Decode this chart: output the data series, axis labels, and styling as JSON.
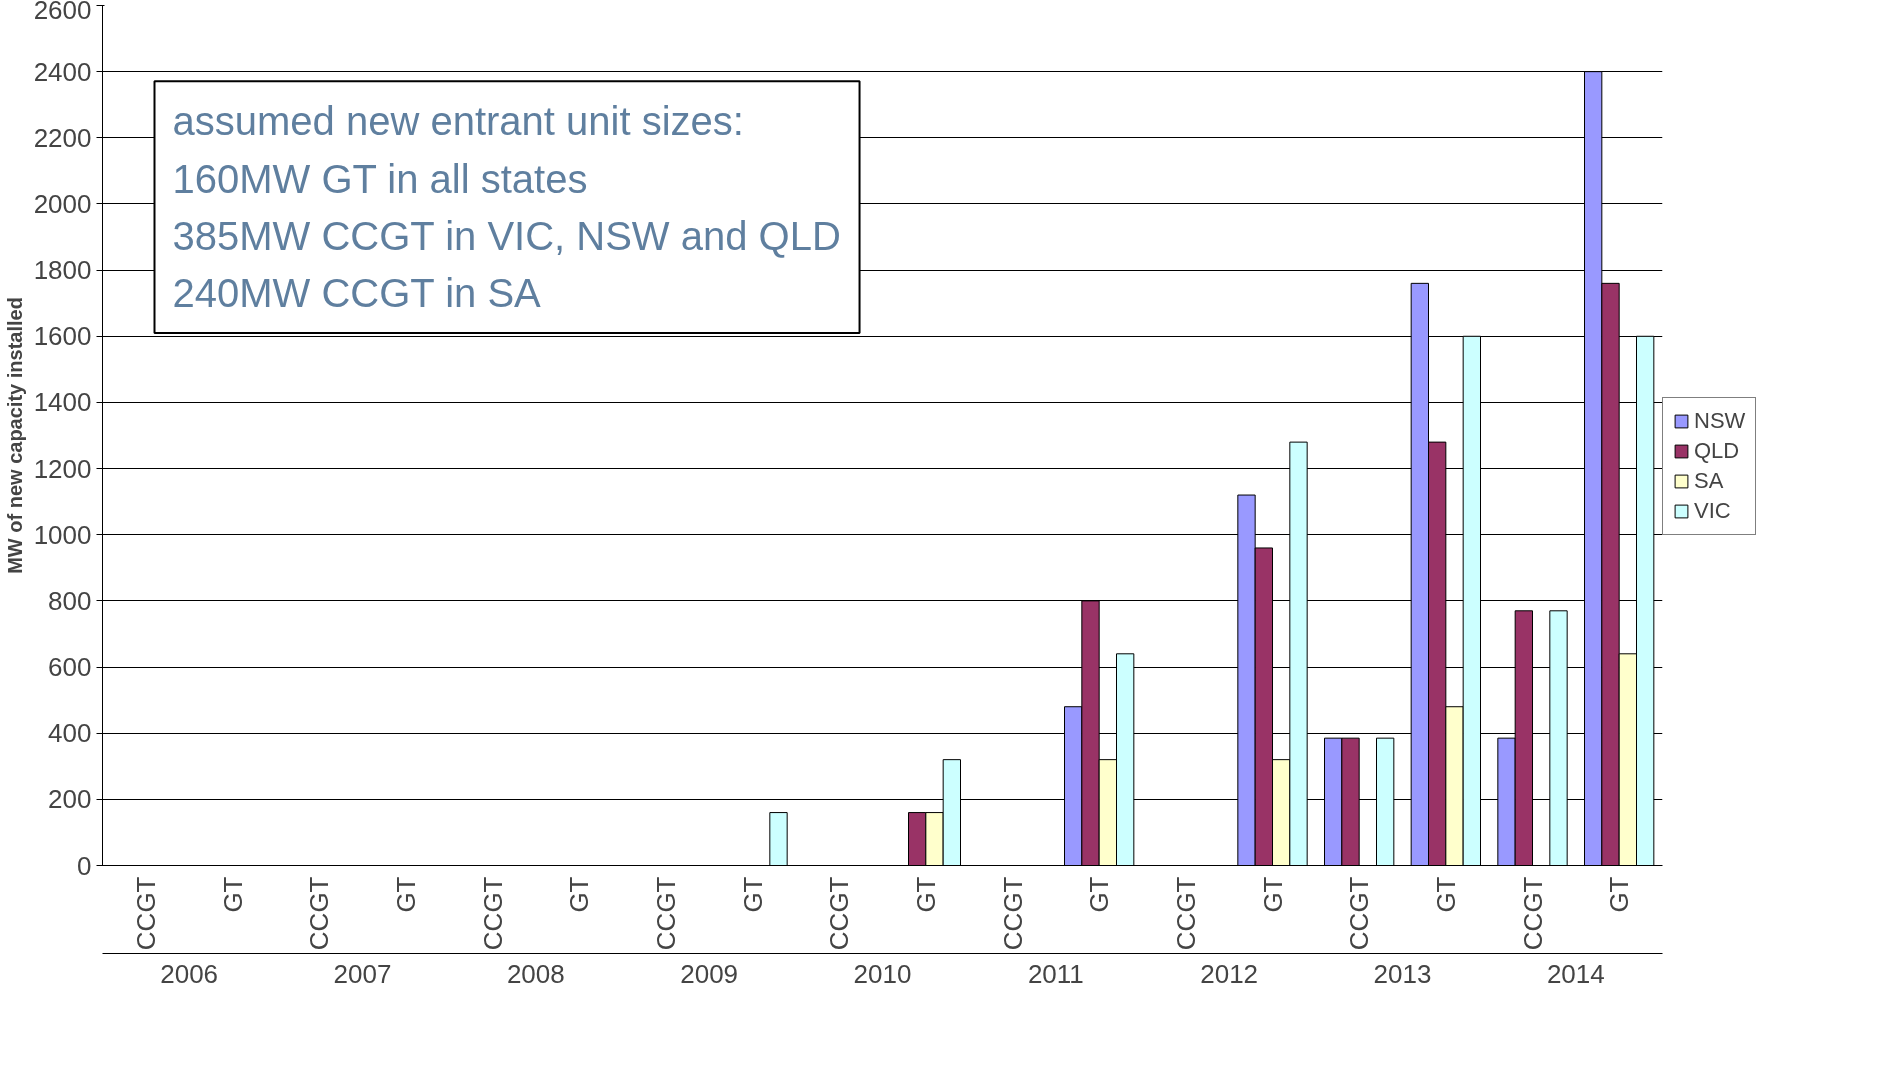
{
  "chart_data": {
    "type": "bar",
    "ylabel": "MW of new capacity installed",
    "categories": [
      "CCGT",
      "GT",
      "CCGT",
      "GT",
      "CCGT",
      "GT",
      "CCGT",
      "GT",
      "CCGT",
      "GT",
      "CCGT",
      "GT",
      "CCGT",
      "GT",
      "CCGT",
      "GT",
      "CCGT",
      "GT"
    ],
    "series": [
      {
        "name": "NSW",
        "color": "#9999ff",
        "values": [
          null,
          null,
          null,
          null,
          null,
          null,
          null,
          null,
          null,
          null,
          null,
          480,
          null,
          1120,
          385,
          1760,
          385,
          2400
        ]
      },
      {
        "name": "QLD",
        "color": "#993366",
        "values": [
          null,
          null,
          null,
          null,
          null,
          null,
          null,
          null,
          null,
          160,
          null,
          800,
          null,
          960,
          385,
          1280,
          770,
          1760
        ]
      },
      {
        "name": "SA",
        "color": "#ffffcc",
        "values": [
          null,
          null,
          null,
          null,
          null,
          null,
          null,
          null,
          null,
          160,
          null,
          320,
          null,
          320,
          null,
          480,
          null,
          640
        ]
      },
      {
        "name": "VIC",
        "color": "#ccffff",
        "values": [
          null,
          null,
          null,
          null,
          null,
          null,
          null,
          160,
          null,
          320,
          null,
          640,
          null,
          1280,
          385,
          1600,
          770,
          1600
        ]
      }
    ],
    "ylim": [
      0,
      2600
    ],
    "yticks": [
      0,
      200,
      400,
      600,
      800,
      1000,
      1200,
      1400,
      1600,
      1800,
      2000,
      2200,
      2400,
      2600
    ],
    "grid": "y",
    "legend": "right",
    "annotations": [
      "assumed new entrant unit sizes:\n160MW GT in all states\n385MW CCGT in VIC, NSW and QLD\n240MW CCGT in SA",
      "2006",
      "2007",
      "2008",
      "2009",
      "2010",
      "2011",
      "2012",
      "2013",
      "2014"
    ]
  }
}
